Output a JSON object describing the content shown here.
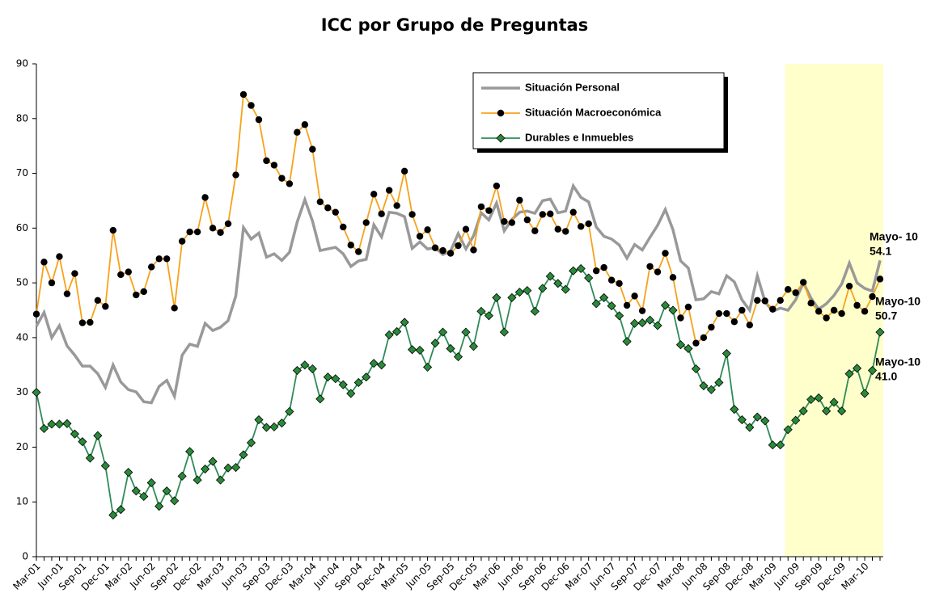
{
  "chart_data": {
    "type": "line",
    "title": "ICC por Grupo de Preguntas",
    "categories": [
      "Mar-01",
      null,
      null,
      "Jun-01",
      null,
      null,
      "Sep-01",
      null,
      null,
      "Dec-01",
      null,
      null,
      "Mar-02",
      null,
      null,
      "Jun-02",
      null,
      null,
      "Sep-02",
      null,
      null,
      "Dec-02",
      null,
      null,
      "Mar-03",
      null,
      null,
      "Jun-03",
      null,
      null,
      "Sep-03",
      null,
      null,
      "Dec-03",
      null,
      null,
      "Mar-04",
      null,
      null,
      "Jun-04",
      null,
      null,
      "Sep-04",
      null,
      null,
      "Dec-04",
      null,
      null,
      "Mar-05",
      null,
      null,
      "Jun-05",
      null,
      null,
      "Sep-05",
      null,
      null,
      "Dec-05",
      null,
      null,
      "Mar-06",
      null,
      null,
      "Jun-06",
      null,
      null,
      "Sep-06",
      null,
      null,
      "Dec-06",
      null,
      null,
      "Mar-07",
      null,
      null,
      "Jun-07",
      null,
      null,
      "Sep-07",
      null,
      null,
      "Dec-07",
      null,
      null,
      "Mar-08",
      null,
      null,
      "Jun-08",
      null,
      null,
      "Sep-08",
      null,
      null,
      "Dec-08",
      null,
      null,
      "Mar-09",
      null,
      null,
      "Jun-09",
      null,
      null,
      "Sep-09",
      null,
      null,
      "Dec-09",
      null,
      null,
      "Mar-10",
      null,
      null
    ],
    "series": [
      {
        "name": "Situación Personal",
        "color": "#999999",
        "marker": "none",
        "values": [
          42.1,
          44.6,
          40.0,
          42.2,
          38.5,
          36.8,
          34.8,
          34.8,
          33.4,
          30.9,
          35.0,
          31.9,
          30.5,
          30.1,
          28.3,
          28.1,
          31.1,
          32.2,
          29.3,
          36.8,
          38.8,
          38.4,
          42.6,
          41.3,
          41.9,
          43.1,
          47.6,
          60.1,
          58.0,
          59.1,
          54.7,
          55.3,
          54.1,
          55.6,
          61.1,
          65.2,
          61.3,
          55.9,
          56.2,
          56.5,
          55.3,
          53.0,
          54.0,
          54.3,
          60.6,
          58.4,
          62.9,
          62.7,
          62.1,
          56.3,
          57.5,
          56.2,
          56.4,
          55.2,
          55.8,
          59.0,
          56.2,
          58.6,
          62.8,
          61.5,
          64.6,
          59.5,
          61.6,
          62.9,
          63.1,
          62.7,
          65.0,
          65.3,
          62.8,
          63.1,
          67.7,
          65.6,
          64.8,
          60.2,
          58.5,
          58.0,
          56.9,
          54.5,
          57.0,
          56.0,
          58.3,
          60.5,
          63.4,
          59.7,
          54.0,
          52.7,
          46.9,
          47.1,
          48.4,
          48.0,
          51.3,
          50.2,
          46.9,
          45.0,
          51.3,
          46.6,
          44.8,
          45.4,
          45.0,
          46.9,
          50.0,
          47.2,
          45.2,
          46.2,
          47.7,
          49.8,
          53.6,
          50.0,
          49.0,
          48.5,
          54.1
        ]
      },
      {
        "name": "Situación Macroeconómica",
        "color": "#f7a21b",
        "marker": "circle",
        "values": [
          44.3,
          53.8,
          50.0,
          54.8,
          48.0,
          51.7,
          42.7,
          42.8,
          46.8,
          45.7,
          59.6,
          51.5,
          52.0,
          47.8,
          48.4,
          52.9,
          54.4,
          54.4,
          45.4,
          57.6,
          59.3,
          59.3,
          65.6,
          60.0,
          59.2,
          60.8,
          69.7,
          84.4,
          82.4,
          79.8,
          72.3,
          71.5,
          69.1,
          68.1,
          77.5,
          78.9,
          74.4,
          64.8,
          63.7,
          62.9,
          60.2,
          56.9,
          55.7,
          61.0,
          66.2,
          62.6,
          66.9,
          64.1,
          70.4,
          62.5,
          58.5,
          59.7,
          56.4,
          55.9,
          55.4,
          56.8,
          59.8,
          56.0,
          63.9,
          63.2,
          67.7,
          61.2,
          61.0,
          65.1,
          61.5,
          59.5,
          62.5,
          62.6,
          59.8,
          59.4,
          62.9,
          60.3,
          60.8,
          52.2,
          52.8,
          50.5,
          49.9,
          45.9,
          47.6,
          44.9,
          53.0,
          52.0,
          55.4,
          51.0,
          43.6,
          45.6,
          39.0,
          40.0,
          41.9,
          44.4,
          44.4,
          42.9,
          45.0,
          42.3,
          46.8,
          46.7,
          45.2,
          46.8,
          48.8,
          48.2,
          50.1,
          46.3,
          44.8,
          43.6,
          45.0,
          44.4,
          49.4,
          45.9,
          44.8,
          47.5,
          50.7
        ]
      },
      {
        "name": "Durables e Inmuebles",
        "color": "#2e8b57",
        "marker": "diamond",
        "values": [
          30.0,
          23.4,
          24.2,
          24.2,
          24.3,
          22.4,
          21.0,
          18.0,
          22.1,
          16.6,
          7.6,
          8.6,
          15.4,
          12.0,
          11.0,
          13.5,
          9.2,
          12.0,
          10.2,
          14.7,
          19.2,
          14.0,
          16.0,
          17.4,
          14.0,
          16.2,
          16.3,
          18.6,
          20.8,
          25.0,
          23.6,
          23.7,
          24.4,
          26.5,
          34.0,
          35.0,
          34.3,
          28.8,
          32.8,
          32.5,
          31.4,
          29.8,
          31.8,
          32.8,
          35.3,
          35.0,
          40.5,
          41.1,
          42.8,
          37.8,
          37.7,
          34.6,
          39.0,
          41.0,
          38.0,
          36.5,
          41.0,
          38.4,
          44.8,
          44.0,
          47.3,
          41.0,
          47.3,
          48.3,
          48.6,
          44.8,
          49.0,
          51.2,
          49.9,
          48.8,
          52.2,
          52.6,
          50.9,
          46.2,
          47.3,
          45.8,
          44.0,
          39.3,
          42.6,
          42.7,
          43.2,
          42.2,
          45.9,
          45.0,
          38.7,
          38.0,
          34.3,
          31.2,
          30.5,
          31.8,
          37.1,
          26.9,
          25.0,
          23.6,
          25.5,
          24.8,
          20.4,
          20.4,
          23.2,
          24.9,
          26.6,
          28.7,
          29.0,
          26.6,
          28.2,
          26.6,
          33.4,
          34.4,
          29.8,
          34.0,
          41.0
        ]
      }
    ],
    "ylim": [
      0,
      90
    ],
    "yticks": [
      0,
      10,
      20,
      30,
      40,
      50,
      60,
      70,
      80,
      90
    ],
    "grid": false,
    "legend": "top-right",
    "annotations": [
      {
        "lines": [
          "Mayo- 10",
          "54.1"
        ]
      },
      {
        "lines": [
          "Mayo-10",
          "50.7"
        ]
      },
      {
        "lines": [
          "Mayo-10",
          "41.0"
        ]
      }
    ]
  }
}
